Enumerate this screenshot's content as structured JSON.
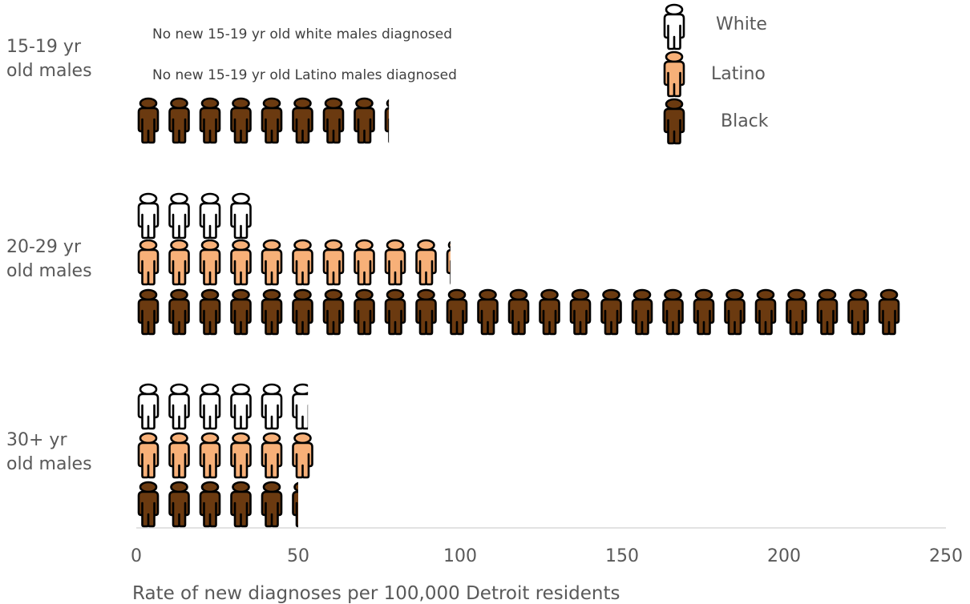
{
  "chart_data": {
    "type": "bar",
    "orientation": "horizontal",
    "representation": "pictograph",
    "categories": [
      "15-19 yr old males",
      "20-29 yr old males",
      "30+ yr old males"
    ],
    "category_labels": [
      [
        "15-19 yr",
        "old males"
      ],
      [
        "20-29 yr",
        "old males"
      ],
      [
        "30+ yr",
        "old males"
      ]
    ],
    "series": [
      {
        "name": "White",
        "color": "#ffffff",
        "values": [
          0,
          37,
          53
        ]
      },
      {
        "name": "Latino",
        "color": "#f7b078",
        "values": [
          0,
          97,
          55
        ]
      },
      {
        "name": "Black",
        "color": "#6b3a10",
        "values": [
          78,
          238,
          50
        ]
      }
    ],
    "notes": [
      "No new 15-19 yr old white males diagnosed",
      "No new 15-19 yr old Latino males diagnosed"
    ],
    "xlabel": "Rate of new diagnoses per 100,000 Detroit residents",
    "xlim": [
      0,
      250
    ],
    "xticks": [
      0,
      50,
      100,
      150,
      200,
      250
    ],
    "grid": false,
    "legend_position": "top-right"
  }
}
